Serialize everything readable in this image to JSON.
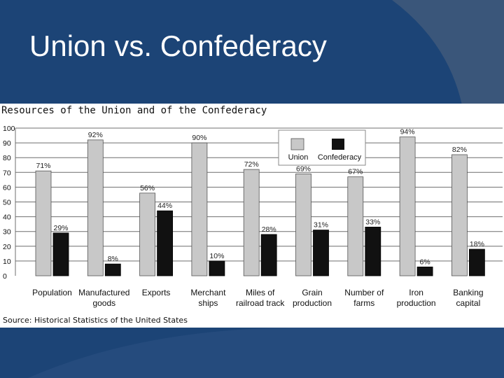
{
  "slide": {
    "title": "Union vs. Confederacy"
  },
  "chart_data": {
    "type": "bar",
    "title": "Resources of the Union and of the Confederacy",
    "source": "Source: Historical Statistics of the United States",
    "xlabel": "",
    "ylabel": "",
    "ylim": [
      0,
      100
    ],
    "yticks": [
      0,
      10,
      20,
      30,
      40,
      50,
      60,
      70,
      80,
      90,
      100
    ],
    "grid": true,
    "legend_position": "top-right",
    "categories": [
      [
        "Population"
      ],
      [
        "Manufactured",
        "goods"
      ],
      [
        "Exports"
      ],
      [
        "Merchant",
        "ships"
      ],
      [
        "Miles of",
        "railroad track"
      ],
      [
        "Grain",
        "production"
      ],
      [
        "Number of",
        "farms"
      ],
      [
        "Iron",
        "production"
      ],
      [
        "Banking",
        "capital"
      ]
    ],
    "series": [
      {
        "name": "Union",
        "color": "#c8c8c8",
        "values": [
          71,
          92,
          56,
          90,
          72,
          69,
          67,
          94,
          82
        ],
        "labels": [
          "71%",
          "92%",
          "56%",
          "90%",
          "72%",
          "69%",
          "67%",
          "94%",
          "82%"
        ]
      },
      {
        "name": "Confederacy",
        "color": "#111111",
        "values": [
          29,
          8,
          44,
          10,
          28,
          31,
          33,
          6,
          18
        ],
        "labels": [
          "29%",
          "8%",
          "44%",
          "10%",
          "28%",
          "31%",
          "33%",
          "6%",
          "18%"
        ]
      }
    ]
  }
}
